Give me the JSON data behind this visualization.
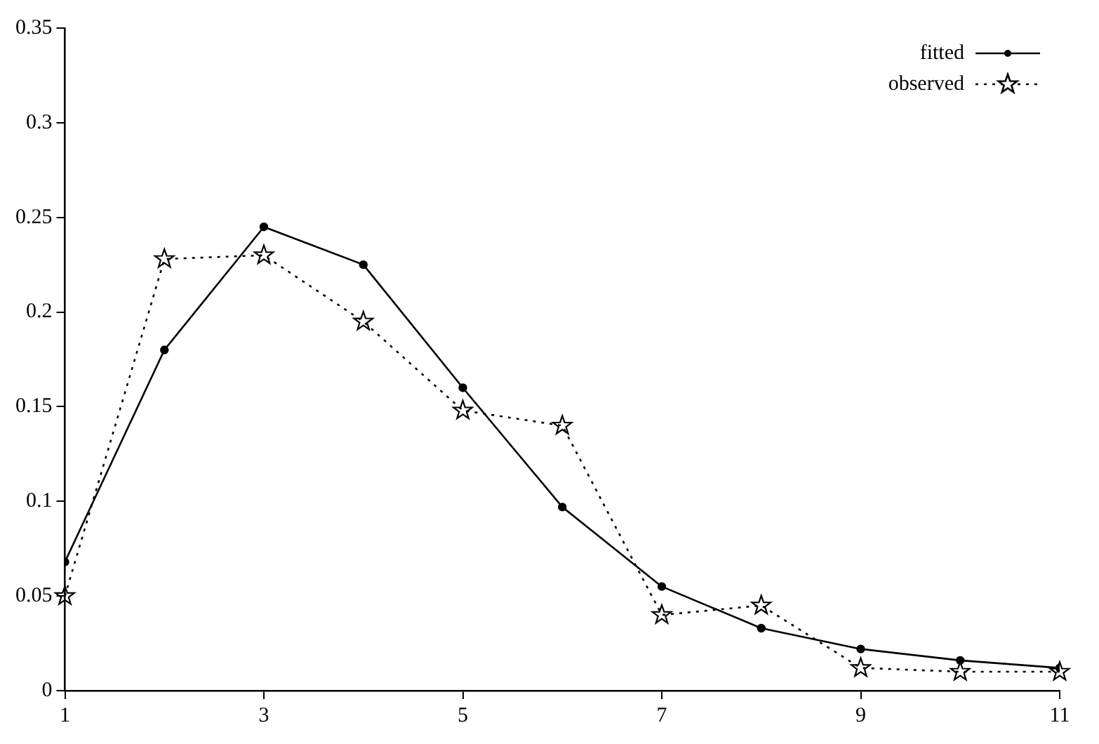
{
  "chart_data": {
    "type": "line",
    "x": [
      1,
      2,
      3,
      4,
      5,
      6,
      7,
      8,
      9,
      10,
      11
    ],
    "series": [
      {
        "name": "fitted",
        "color": "#000000",
        "marker": "circle",
        "line_style": "solid",
        "values": [
          0.068,
          0.18,
          0.245,
          0.225,
          0.16,
          0.097,
          0.055,
          0.033,
          0.022,
          0.016,
          0.012
        ]
      },
      {
        "name": "observed",
        "color": "#000000",
        "marker": "star",
        "line_style": "dotted",
        "values": [
          0.05,
          0.228,
          0.23,
          0.195,
          0.148,
          0.14,
          0.04,
          0.045,
          0.012,
          0.01,
          0.01
        ]
      }
    ],
    "xlim": [
      1,
      11
    ],
    "xticks": [
      1,
      3,
      5,
      7,
      9,
      11
    ],
    "ylim": [
      0,
      0.35
    ],
    "yticks": [
      0,
      0.05,
      0.1,
      0.15,
      0.2,
      0.25,
      0.3,
      0.35
    ],
    "grid": false,
    "legend": "top right"
  }
}
